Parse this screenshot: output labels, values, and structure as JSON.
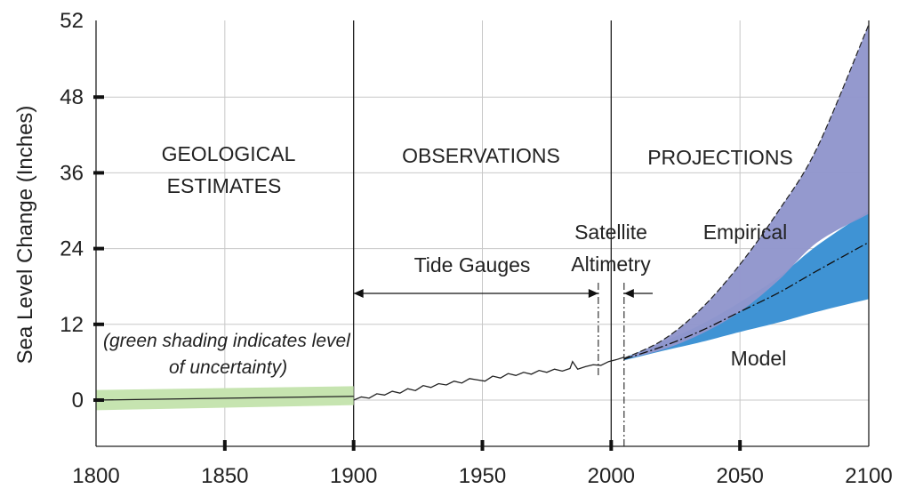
{
  "chart_data": {
    "type": "line",
    "ylabel": "Sea Level Change (Inches)",
    "xlabel": "",
    "x_ticks": [
      1800,
      1850,
      1900,
      1950,
      2000,
      2050,
      2100
    ],
    "y_ticks": [
      0,
      12,
      24,
      36,
      48,
      52
    ],
    "xlim": [
      1800,
      2100
    ],
    "grid": true,
    "eras": [
      {
        "label_lines": [
          "GEOLOGICAL",
          "ESTIMATES"
        ],
        "range": [
          1800,
          1900
        ]
      },
      {
        "label_lines": [
          "OBSERVATIONS"
        ],
        "range": [
          1900,
          2000
        ]
      },
      {
        "label_lines": [
          "PROJECTIONS"
        ],
        "range": [
          2000,
          2100
        ]
      }
    ],
    "annotations": {
      "tide_gauges": "Tide Gauges",
      "satellite_lines": [
        "Satellite",
        "Altimetry"
      ],
      "empirical": "Empirical",
      "model": "Model",
      "uncertainty_lines": [
        "(green shading indicates level",
        "of uncertainty)"
      ]
    },
    "spans": {
      "tide_gauges": [
        1900,
        1995
      ],
      "satellite_altimetry": [
        2005
      ]
    },
    "series": [
      {
        "role": "geological-line",
        "x": [
          1800,
          1900
        ],
        "y": [
          0.0,
          0.6
        ]
      },
      {
        "role": "geological-band",
        "x": [
          1800,
          1900
        ],
        "lower": [
          -1.6,
          -0.8
        ],
        "upper": [
          1.6,
          2.2
        ]
      },
      {
        "role": "observations",
        "x": [
          1900,
          1903,
          1906,
          1909,
          1912,
          1915,
          1918,
          1921,
          1924,
          1927,
          1930,
          1933,
          1936,
          1939,
          1942,
          1945,
          1948,
          1951,
          1954,
          1957,
          1960,
          1963,
          1966,
          1969,
          1972,
          1975,
          1978,
          1981,
          1984,
          1985,
          1987,
          1990,
          1993,
          1996,
          1999,
          2002,
          2005
        ],
        "y": [
          0.0,
          0.5,
          0.3,
          1.0,
          0.8,
          1.4,
          1.1,
          1.8,
          1.5,
          2.3,
          2.0,
          2.6,
          2.4,
          3.0,
          2.7,
          3.4,
          3.2,
          3.0,
          3.8,
          3.5,
          4.2,
          3.9,
          4.4,
          4.1,
          4.7,
          4.4,
          4.9,
          4.6,
          5.0,
          6.1,
          4.9,
          5.3,
          5.6,
          5.5,
          6.1,
          6.4,
          6.8
        ]
      },
      {
        "role": "empirical-band",
        "x": [
          2005,
          2020,
          2035,
          2050,
          2065,
          2080,
          2100
        ],
        "lower": [
          6.5,
          8.0,
          10.5,
          14.0,
          19.0,
          25.0,
          29.5
        ],
        "upper": [
          6.6,
          9.5,
          14.5,
          21.5,
          30.0,
          40.0,
          59.5
        ]
      },
      {
        "role": "model-band",
        "x": [
          2005,
          2020,
          2035,
          2050,
          2065,
          2080,
          2100
        ],
        "lower": [
          6.3,
          7.8,
          9.2,
          10.8,
          12.3,
          14.0,
          16.0
        ],
        "upper": [
          6.7,
          9.2,
          12.0,
          15.5,
          19.5,
          24.5,
          30.0
        ]
      },
      {
        "role": "projection-dashdot",
        "x": [
          2005,
          2020,
          2035,
          2050,
          2065,
          2080,
          2100
        ],
        "y": [
          6.5,
          8.5,
          11.0,
          14.0,
          17.0,
          20.5,
          25.0
        ]
      }
    ],
    "colors": {
      "geo_band": "#c6e4b0",
      "empirical": "#9196cc",
      "model": "#3f93d4",
      "line": "#222222",
      "grid": "#c8c8c8"
    }
  }
}
